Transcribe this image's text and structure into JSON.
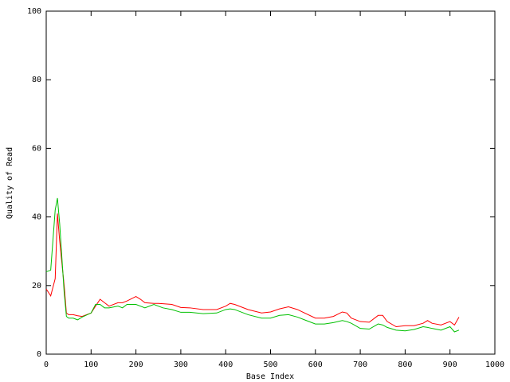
{
  "chart_data": {
    "type": "line",
    "x_label": "Base Index",
    "y_label": "Quality of Read",
    "x": [
      0,
      10,
      20,
      25,
      30,
      40,
      45,
      50,
      60,
      70,
      80,
      100,
      110,
      120,
      130,
      140,
      160,
      170,
      180,
      200,
      210,
      220,
      240,
      250,
      260,
      280,
      300,
      320,
      350,
      380,
      400,
      410,
      420,
      450,
      480,
      500,
      520,
      540,
      560,
      600,
      620,
      640,
      660,
      670,
      680,
      700,
      720,
      740,
      750,
      760,
      780,
      800,
      820,
      840,
      850,
      860,
      880,
      900,
      910,
      920
    ],
    "series": [
      {
        "color": "#ff0000",
        "values": [
          19,
          17,
          22,
          41,
          33,
          20,
          12,
          11.5,
          11.5,
          11.2,
          11,
          12,
          14,
          16,
          15,
          14,
          15,
          15,
          15.5,
          16.8,
          16,
          15,
          14.8,
          14.8,
          14.7,
          14.5,
          13.6,
          13.5,
          13,
          13,
          14,
          14.8,
          14.5,
          13,
          12,
          12.3,
          13.2,
          13.8,
          13,
          10.5,
          10.5,
          11,
          12.3,
          12,
          10.5,
          9.5,
          9.3,
          11.3,
          11.3,
          9.5,
          8,
          8.3,
          8.3,
          9,
          9.8,
          9,
          8.5,
          9.5,
          8.5,
          10.8
        ]
      },
      {
        "color": "#00c000",
        "values": [
          24,
          24.5,
          42,
          45.5,
          38,
          18,
          11,
          10.5,
          10.5,
          10,
          10.8,
          12,
          14.5,
          14.5,
          13.5,
          13.5,
          14,
          13.5,
          14.5,
          14.5,
          14,
          13.5,
          14.5,
          14,
          13.5,
          13,
          12.2,
          12.2,
          11.8,
          12,
          13,
          13.2,
          13,
          11.5,
          10.5,
          10.5,
          11.3,
          11.5,
          10.8,
          8.8,
          8.8,
          9.2,
          9.8,
          9.5,
          9,
          7.5,
          7.3,
          8.8,
          8.5,
          7.8,
          7,
          6.8,
          7.2,
          8,
          7.8,
          7.5,
          7,
          8,
          6.5,
          7
        ]
      }
    ],
    "xlim": [
      0,
      1000
    ],
    "xticks": [
      0,
      100,
      200,
      300,
      400,
      500,
      600,
      700,
      800,
      900,
      1000
    ],
    "ylim": [
      0,
      100
    ],
    "yticks": [
      0,
      20,
      40,
      60,
      80,
      100
    ]
  }
}
